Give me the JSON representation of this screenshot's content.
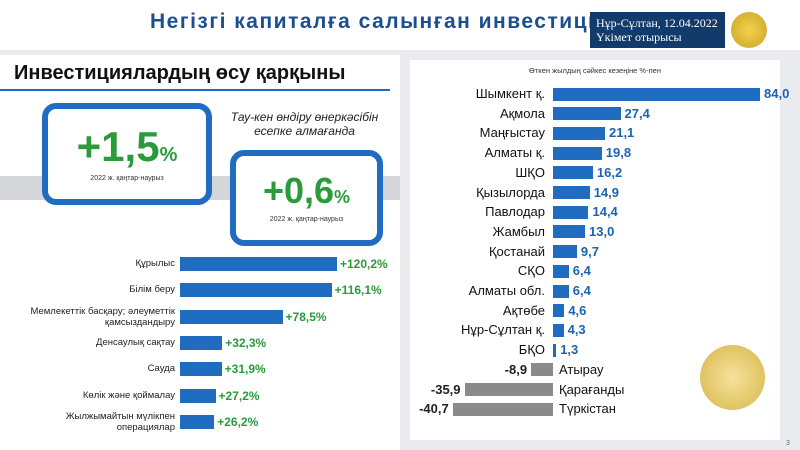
{
  "header": {
    "title": "Негізгі капиталға салынған инвестици",
    "place_date": "Нұр-Сұлтан, 12.04.2022",
    "event": "Үкімет отырысы"
  },
  "section_title": "Инвестициялардың өсу қарқыны",
  "highlights": [
    {
      "value": "+1,5",
      "unit": "%",
      "period": "2022 ж. қаңтар-наурыз"
    },
    {
      "note": "Тау-кен өндіру өнеркәсібін есепке алмағанда",
      "value": "+0,6",
      "unit": "%",
      "period": "2022 ж. қаңтар-наурыз"
    }
  ],
  "chart_data": [
    {
      "type": "bar",
      "orientation": "horizontal",
      "categories": [
        "Құрылыс",
        "Білім беру",
        "Мемлекеттік басқару; әлеуметтік қамсыздандыру",
        "Денсаулық сақтау",
        "Сауда",
        "Көлік және қоймалау",
        "Жылжымайтын мүлікпен операциялар"
      ],
      "values": [
        120.2,
        116.1,
        78.5,
        32.3,
        31.9,
        27.2,
        26.2
      ],
      "value_labels": [
        "+120,2%",
        "+116,1%",
        "+78,5%",
        "+32,3%",
        "+31,9%",
        "+27,2%",
        "+26,2%"
      ],
      "color": "#1f6cc0",
      "label_color": "#2a9a3a"
    },
    {
      "type": "bar",
      "orientation": "horizontal",
      "subtitle": "Өткен жылдың сәйкес кезеңіне %-пен",
      "categories": [
        "Шымкент қ.",
        "Ақмола",
        "Маңғыстау",
        "Алматы қ.",
        "ШҚО",
        "Қызылорда",
        "Павлодар",
        "Жамбыл",
        "Қостанай",
        "СҚО",
        "Алматы обл.",
        "Ақтөбе",
        "Нұр-Сұлтан қ.",
        "БҚО",
        "Атырау",
        "Қарағанды",
        "Түркістан"
      ],
      "values": [
        84.0,
        27.4,
        21.1,
        19.8,
        16.2,
        14.9,
        14.4,
        13.0,
        9.7,
        6.4,
        6.4,
        4.6,
        4.3,
        1.3,
        -8.9,
        -35.9,
        -40.7
      ],
      "value_labels": [
        "84,0",
        "27,4",
        "21,1",
        "19,8",
        "16,2",
        "14,9",
        "14,4",
        "13,0",
        "9,7",
        "6,4",
        "6,4",
        "4,6",
        "4,3",
        "1,3",
        "-8,9",
        "-35,9",
        "-40,7"
      ],
      "color": "#1f6cc0",
      "negative_color": "#8a8a8a",
      "label_color": "#1a64b0"
    }
  ],
  "page_number": "3"
}
